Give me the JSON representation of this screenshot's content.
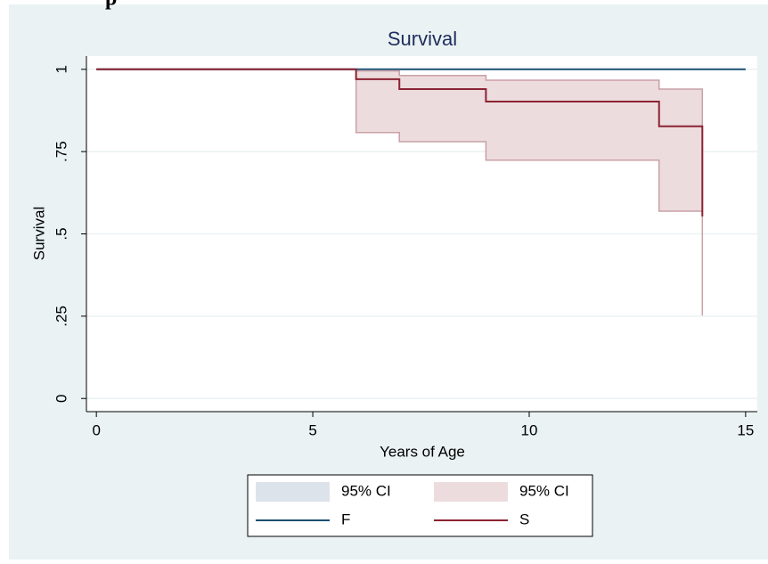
{
  "heading": "p",
  "chart_data": {
    "type": "survival-step",
    "title": "Survival",
    "x_label": "Years of Age",
    "y_label": "Survival",
    "xlim": [
      -0.23,
      15.27
    ],
    "ylim": [
      -0.04,
      1.04
    ],
    "xticks": [
      0,
      5,
      10,
      15
    ],
    "yticks": [
      0,
      {
        "value": 0.25,
        "label": ".25"
      },
      {
        "value": 0.5,
        "label": ".5"
      },
      {
        "value": 0.75,
        "label": ".75"
      },
      1
    ],
    "grid": true,
    "series": [
      {
        "name": "95% CI",
        "kind": "band",
        "color": "#dde3ea",
        "x": [
          0,
          15
        ],
        "lower": [
          1,
          1
        ],
        "upper": [
          1,
          1
        ]
      },
      {
        "name": "F",
        "kind": "line",
        "color": "#1a4f72",
        "x": [
          0,
          15
        ],
        "values": [
          1,
          1
        ]
      },
      {
        "name": "95% CI",
        "kind": "band",
        "color": "#eddcde",
        "x": [
          0,
          6,
          7,
          9,
          13,
          14
        ],
        "lower": [
          null,
          0.808,
          0.78,
          0.724,
          0.569,
          0.252
        ],
        "upper": [
          null,
          0.995,
          0.981,
          0.967,
          0.94,
          0.94
        ]
      },
      {
        "name": "S",
        "kind": "line",
        "color": "#8b2232",
        "x": [
          0,
          6,
          7,
          9,
          13,
          14
        ],
        "values": [
          1,
          0.97,
          0.94,
          0.902,
          0.827,
          0.553
        ]
      }
    ]
  }
}
